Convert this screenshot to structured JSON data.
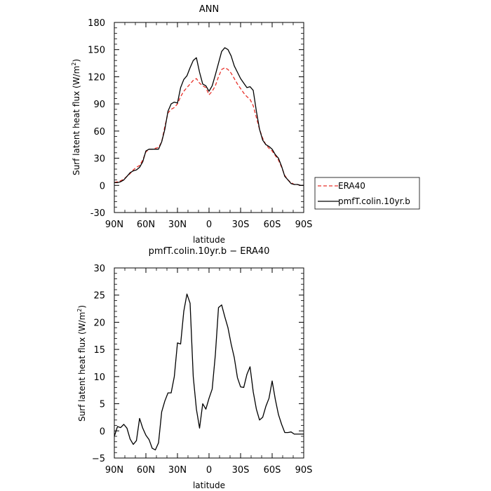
{
  "chart_data": [
    {
      "type": "line",
      "title": "ANN",
      "xlabel": "latitude",
      "ylabel_main": "Surf latent heat flux (W/m",
      "ylabel_sup": "2",
      "ylabel_close": ")",
      "xlim": [
        90,
        -90
      ],
      "ylim": [
        -30,
        180
      ],
      "x_ticks": [
        90,
        60,
        30,
        0,
        -30,
        -60,
        -90
      ],
      "x_tick_labels": [
        "90N",
        "60N",
        "30N",
        "0",
        "30S",
        "60S",
        "90S"
      ],
      "y_ticks": [
        -30,
        0,
        30,
        60,
        90,
        120,
        150,
        180
      ],
      "y_tick_labels": [
        "-30",
        "0",
        "30",
        "60",
        "90",
        "120",
        "150",
        "180"
      ],
      "legend_position": "right",
      "series": [
        {
          "name": "ERA40",
          "color": "#e8312a",
          "dash": "dashed",
          "x": [
            90,
            87,
            84,
            81,
            78,
            75,
            72,
            69,
            66,
            63,
            60,
            57,
            54,
            51,
            48,
            45,
            42,
            39,
            36,
            33,
            30,
            27,
            24,
            21,
            18,
            15,
            12,
            9,
            6,
            3,
            0,
            -3,
            -6,
            -9,
            -12,
            -15,
            -18,
            -21,
            -24,
            -27,
            -30,
            -33,
            -36,
            -39,
            -42,
            -45,
            -48,
            -51,
            -54,
            -57,
            -60,
            -63,
            -66,
            -69,
            -72,
            -75,
            -78,
            -81,
            -84,
            -87,
            -90
          ],
          "y": [
            3,
            4,
            5,
            7,
            10,
            13,
            17,
            20,
            22,
            28,
            37,
            40,
            40,
            41,
            42,
            48,
            65,
            80,
            84,
            86,
            90,
            98,
            104,
            108,
            112,
            116,
            118,
            113,
            110,
            108,
            100,
            104,
            110,
            120,
            128,
            130,
            128,
            124,
            118,
            112,
            107,
            102,
            98,
            95,
            88,
            75,
            62,
            52,
            45,
            41,
            38,
            33,
            28,
            20,
            11,
            6,
            3,
            1,
            1,
            0,
            0
          ]
        },
        {
          "name": "pmfT.colin.10yr.b",
          "color": "#000000",
          "dash": "solid",
          "x": [
            90,
            87,
            84,
            81,
            78,
            75,
            72,
            69,
            66,
            63,
            60,
            57,
            54,
            51,
            48,
            45,
            42,
            39,
            36,
            33,
            30,
            27,
            24,
            21,
            18,
            15,
            12,
            9,
            6,
            3,
            0,
            -3,
            -6,
            -9,
            -12,
            -15,
            -18,
            -21,
            -24,
            -27,
            -30,
            -33,
            -36,
            -39,
            -42,
            -45,
            -48,
            -51,
            -54,
            -57,
            -60,
            -63,
            -66,
            -69,
            -72,
            -75,
            -78,
            -81,
            -84,
            -87,
            -90
          ],
          "y": [
            3,
            3,
            4,
            6,
            10,
            14,
            16,
            17,
            20,
            26,
            38,
            40,
            40,
            40,
            40,
            48,
            62,
            82,
            90,
            92,
            91,
            108,
            117,
            121,
            130,
            138,
            141,
            125,
            112,
            110,
            104,
            110,
            122,
            135,
            148,
            152,
            150,
            143,
            132,
            125,
            118,
            113,
            108,
            109,
            105,
            82,
            62,
            50,
            45,
            43,
            40,
            34,
            30,
            21,
            10,
            6,
            2,
            1,
            1,
            0,
            0
          ]
        }
      ]
    },
    {
      "type": "line",
      "title": "pmfT.colin.10yr.b − ERA40",
      "xlabel": "latitude",
      "ylabel_main": "Surf latent heat flux (W/m",
      "ylabel_sup": "2",
      "ylabel_close": ")",
      "xlim": [
        90,
        -90
      ],
      "ylim": [
        -5,
        30
      ],
      "x_ticks": [
        90,
        60,
        30,
        0,
        -30,
        -60,
        -90
      ],
      "x_tick_labels": [
        "90N",
        "60N",
        "30N",
        "0",
        "30S",
        "60S",
        "90S"
      ],
      "y_ticks": [
        -5,
        0,
        5,
        10,
        15,
        20,
        25,
        30
      ],
      "y_tick_labels": [
        "−5",
        "0",
        "5",
        "10",
        "15",
        "20",
        "25",
        "30"
      ],
      "series": [
        {
          "color": "#000000",
          "dash": "solid",
          "x": [
            90,
            87,
            84,
            81,
            78,
            75,
            72,
            69,
            66,
            63,
            60,
            57,
            54,
            51,
            48,
            45,
            42,
            39,
            36,
            33,
            30,
            27,
            24,
            21,
            18,
            15,
            12,
            9,
            6,
            3,
            0,
            -3,
            -6,
            -9,
            -12,
            -15,
            -18,
            -21,
            -24,
            -27,
            -30,
            -33,
            -36,
            -39,
            -42,
            -45,
            -48,
            -51,
            -54,
            -57,
            -60,
            -63,
            -66,
            -69,
            -72,
            -75,
            -78,
            -81,
            -84,
            -87,
            -90
          ],
          "y": [
            -1.0,
            0.8,
            0.6,
            1.2,
            0.5,
            -1.5,
            -2.5,
            -1.8,
            2.3,
            0.5,
            -0.8,
            -1.6,
            -3.2,
            -3.5,
            -2.2,
            3.5,
            5.5,
            7.0,
            7.0,
            10.0,
            16.2,
            16.0,
            22.0,
            25.2,
            23.5,
            10.0,
            4.0,
            0.5,
            5.0,
            4.0,
            6.0,
            7.7,
            14.0,
            22.7,
            23.2,
            21.0,
            19.0,
            16.0,
            13.5,
            9.8,
            8.1,
            8.0,
            10.4,
            11.8,
            7.2,
            4.0,
            2.0,
            2.5,
            4.5,
            6.0,
            9.2,
            5.8,
            3.0,
            1.2,
            -0.3,
            -0.3,
            -0.2,
            -0.6,
            -0.6,
            -0.6,
            -0.6
          ]
        }
      ]
    }
  ]
}
